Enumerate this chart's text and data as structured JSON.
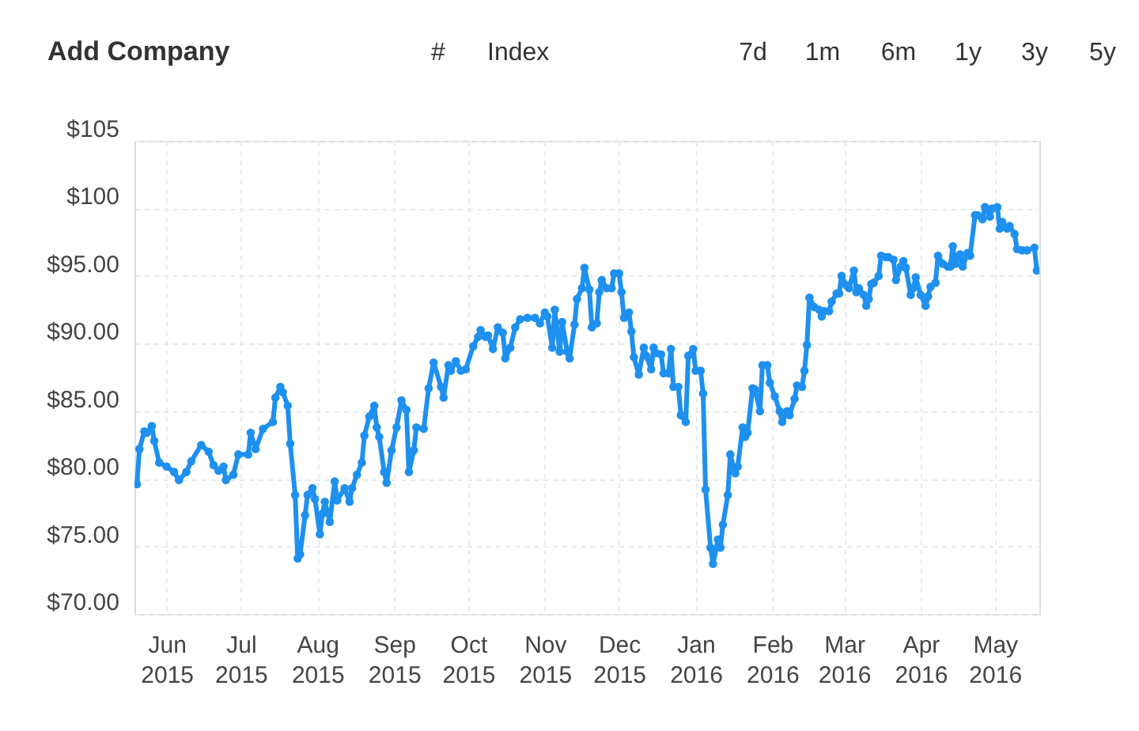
{
  "chart_data": {
    "type": "line",
    "color": "#1e90ef",
    "marker": "circle",
    "line_style": "solid",
    "grid": true,
    "annotations": [
      "Add Company",
      "#",
      "Index",
      "7d",
      "1m",
      "6m",
      "1y",
      "3y",
      "5y"
    ],
    "xlim": [
      "2015-05-19",
      "2016-05-19"
    ],
    "xticks": [
      {
        "value": "2015-06-01",
        "label": "Jun 2015"
      },
      {
        "value": "2015-07-01",
        "label": "Jul 2015"
      },
      {
        "value": "2015-08-01",
        "label": "Aug 2015"
      },
      {
        "value": "2015-09-01",
        "label": "Sep 2015"
      },
      {
        "value": "2015-10-01",
        "label": "Oct 2015"
      },
      {
        "value": "2015-11-01",
        "label": "Nov 2015"
      },
      {
        "value": "2015-12-01",
        "label": "Dec 2015"
      },
      {
        "value": "2016-01-01",
        "label": "Jan 2016"
      },
      {
        "value": "2016-02-01",
        "label": "Feb 2016"
      },
      {
        "value": "2016-03-01",
        "label": "Mar 2016"
      },
      {
        "value": "2016-04-01",
        "label": "Apr 2016"
      },
      {
        "value": "2016-05-01",
        "label": "May 2016"
      }
    ],
    "ylim": [
      70,
      105
    ],
    "yticks": [
      {
        "value": 70,
        "label": "$70.00"
      },
      {
        "value": 75,
        "label": "$75.00"
      },
      {
        "value": 80,
        "label": "$80.00"
      },
      {
        "value": 85,
        "label": "$85.00"
      },
      {
        "value": 90,
        "label": "$90.00"
      },
      {
        "value": 95,
        "label": "$95.00"
      },
      {
        "value": 100,
        "label": "$100"
      },
      {
        "value": 105,
        "label": "$105"
      }
    ],
    "x": [
      "2015-05-20",
      "2015-05-21",
      "2015-05-23",
      "2015-05-24",
      "2015-05-26",
      "2015-05-27",
      "2015-05-29",
      "2015-06-01",
      "2015-06-04",
      "2015-06-06",
      "2015-06-09",
      "2015-06-11",
      "2015-06-15",
      "2015-06-18",
      "2015-06-20",
      "2015-06-22",
      "2015-06-24",
      "2015-06-25",
      "2015-06-28",
      "2015-06-30",
      "2015-07-04",
      "2015-07-05",
      "2015-07-07",
      "2015-07-10",
      "2015-07-14",
      "2015-07-15",
      "2015-07-17",
      "2015-07-18",
      "2015-07-20",
      "2015-07-21",
      "2015-07-23",
      "2015-07-24",
      "2015-07-25",
      "2015-07-27",
      "2015-07-28",
      "2015-07-30",
      "2015-07-31",
      "2015-08-02",
      "2015-08-03",
      "2015-08-04",
      "2015-08-06",
      "2015-08-08",
      "2015-08-09",
      "2015-08-12",
      "2015-08-14",
      "2015-08-15",
      "2015-08-17",
      "2015-08-19",
      "2015-08-20",
      "2015-08-22",
      "2015-08-24",
      "2015-08-25",
      "2015-08-26",
      "2015-08-28",
      "2015-08-29",
      "2015-08-31",
      "2015-09-02",
      "2015-09-04",
      "2015-09-06",
      "2015-09-07",
      "2015-09-09",
      "2015-09-10",
      "2015-09-13",
      "2015-09-15",
      "2015-09-17",
      "2015-09-20",
      "2015-09-21",
      "2015-09-23",
      "2015-09-24",
      "2015-09-26",
      "2015-09-28",
      "2015-09-30",
      "2015-10-03",
      "2015-10-05",
      "2015-10-06",
      "2015-10-08",
      "2015-10-09",
      "2015-10-11",
      "2015-10-13",
      "2015-10-15",
      "2015-10-16",
      "2015-10-18",
      "2015-10-20",
      "2015-10-22",
      "2015-10-25",
      "2015-10-28",
      "2015-10-30",
      "2015-11-01",
      "2015-11-02",
      "2015-11-04",
      "2015-11-05",
      "2015-11-07",
      "2015-11-08",
      "2015-11-10",
      "2015-11-11",
      "2015-11-13",
      "2015-11-14",
      "2015-11-16",
      "2015-11-17",
      "2015-11-19",
      "2015-11-20",
      "2015-11-22",
      "2015-11-23",
      "2015-11-24",
      "2015-11-26",
      "2015-11-28",
      "2015-11-29",
      "2015-12-01",
      "2015-12-02",
      "2015-12-03",
      "2015-12-05",
      "2015-12-06",
      "2015-12-07",
      "2015-12-09",
      "2015-12-11",
      "2015-12-12",
      "2015-12-14",
      "2015-12-15",
      "2015-12-16",
      "2015-12-18",
      "2015-12-19",
      "2015-12-21",
      "2015-12-22",
      "2015-12-23",
      "2015-12-25",
      "2015-12-26",
      "2015-12-28",
      "2015-12-29",
      "2015-12-31",
      "2016-01-01",
      "2016-01-03",
      "2016-01-04",
      "2016-01-05",
      "2016-01-07",
      "2016-01-08",
      "2016-01-10",
      "2016-01-11",
      "2016-01-12",
      "2016-01-14",
      "2016-01-15",
      "2016-01-17",
      "2016-01-18",
      "2016-01-20",
      "2016-01-21",
      "2016-01-22",
      "2016-01-24",
      "2016-01-25",
      "2016-01-27",
      "2016-01-28",
      "2016-01-30",
      "2016-01-31",
      "2016-02-02",
      "2016-02-04",
      "2016-02-05",
      "2016-02-07",
      "2016-02-08",
      "2016-02-10",
      "2016-02-11",
      "2016-02-13",
      "2016-02-14",
      "2016-02-15",
      "2016-02-16",
      "2016-02-18",
      "2016-02-20",
      "2016-02-21",
      "2016-02-22",
      "2016-02-24",
      "2016-02-25",
      "2016-02-27",
      "2016-02-28",
      "2016-02-29",
      "2016-03-02",
      "2016-03-03",
      "2016-03-05",
      "2016-03-06",
      "2016-03-07",
      "2016-03-09",
      "2016-03-10",
      "2016-03-11",
      "2016-03-12",
      "2016-03-13",
      "2016-03-15",
      "2016-03-16",
      "2016-03-18",
      "2016-03-19",
      "2016-03-21",
      "2016-03-22",
      "2016-03-24",
      "2016-03-25",
      "2016-03-26",
      "2016-03-28",
      "2016-03-29",
      "2016-03-30",
      "2016-04-01",
      "2016-04-03",
      "2016-04-04",
      "2016-04-05",
      "2016-04-07",
      "2016-04-08",
      "2016-04-10",
      "2016-04-12",
      "2016-04-13",
      "2016-04-14",
      "2016-04-15",
      "2016-04-17",
      "2016-04-18",
      "2016-04-20",
      "2016-04-21",
      "2016-04-23",
      "2016-04-24",
      "2016-04-26",
      "2016-04-27",
      "2016-04-29",
      "2016-04-30",
      "2016-05-02",
      "2016-05-03",
      "2016-05-04",
      "2016-05-06",
      "2016-05-07",
      "2016-05-09",
      "2016-05-10",
      "2016-05-12",
      "2016-05-14",
      "2016-05-17",
      "2016-05-18"
    ],
    "values": [
      79.6,
      82.2,
      83.5,
      83.4,
      83.9,
      82.8,
      81.2,
      80.9,
      80.5,
      79.9,
      80.5,
      81.3,
      82.5,
      82.0,
      81.0,
      80.6,
      80.9,
      79.9,
      80.3,
      81.8,
      81.8,
      83.4,
      82.2,
      83.7,
      84.2,
      86.0,
      86.8,
      86.4,
      85.4,
      82.6,
      78.8,
      74.1,
      74.4,
      77.3,
      78.8,
      79.3,
      78.5,
      75.9,
      77.4,
      78.3,
      76.8,
      79.8,
      78.4,
      79.3,
      78.3,
      79.3,
      80.3,
      81.2,
      83.2,
      84.6,
      85.4,
      83.8,
      83.1,
      80.5,
      79.7,
      82.1,
      83.8,
      85.8,
      85.1,
      80.5,
      82.1,
      83.8,
      83.7,
      86.7,
      88.6,
      86.8,
      86.0,
      88.4,
      88.0,
      88.7,
      88.0,
      88.1,
      89.8,
      90.5,
      91.0,
      90.5,
      90.6,
      89.6,
      91.2,
      90.8,
      88.9,
      89.7,
      91.2,
      91.8,
      91.9,
      91.9,
      91.5,
      92.3,
      92.0,
      89.7,
      92.5,
      89.4,
      91.6,
      89.4,
      88.9,
      91.4,
      93.3,
      94.1,
      95.6,
      94.0,
      91.2,
      91.5,
      93.8,
      94.7,
      94.1,
      94.1,
      95.2,
      95.2,
      93.8,
      91.9,
      92.3,
      90.9,
      89.0,
      87.7,
      89.7,
      89.1,
      88.1,
      89.7,
      89.3,
      89.2,
      87.8,
      87.8,
      89.6,
      86.8,
      86.8,
      84.7,
      84.2,
      89.1,
      89.6,
      88.0,
      88.0,
      86.3,
      79.2,
      74.9,
      73.7,
      75.5,
      74.9,
      76.6,
      78.8,
      81.8,
      80.4,
      80.9,
      83.8,
      83.1,
      83.4,
      86.7,
      86.6,
      85.0,
      88.4,
      88.4,
      87.1,
      86.1,
      85.0,
      84.2,
      85.0,
      84.7,
      85.9,
      86.9,
      86.8,
      88.0,
      89.9,
      93.4,
      92.7,
      92.5,
      92.0,
      92.4,
      92.4,
      93.1,
      93.7,
      93.7,
      95.0,
      94.3,
      94.1,
      95.4,
      93.8,
      94.1,
      93.6,
      92.8,
      93.3,
      94.4,
      94.5,
      95.0,
      96.5,
      96.4,
      96.4,
      96.2,
      94.7,
      95.7,
      96.1,
      95.6,
      93.6,
      94.1,
      94.9,
      93.6,
      92.8,
      93.5,
      94.2,
      94.5,
      96.5,
      95.9,
      95.7,
      95.7,
      97.2,
      95.9,
      96.6,
      95.7,
      96.7,
      96.5,
      99.5,
      99.5,
      99.2,
      100.1,
      99.4,
      100.0,
      100.1,
      98.5,
      99.0,
      98.5,
      98.7,
      98.1,
      97.0,
      96.9,
      96.9,
      97.1,
      95.4
    ]
  }
}
